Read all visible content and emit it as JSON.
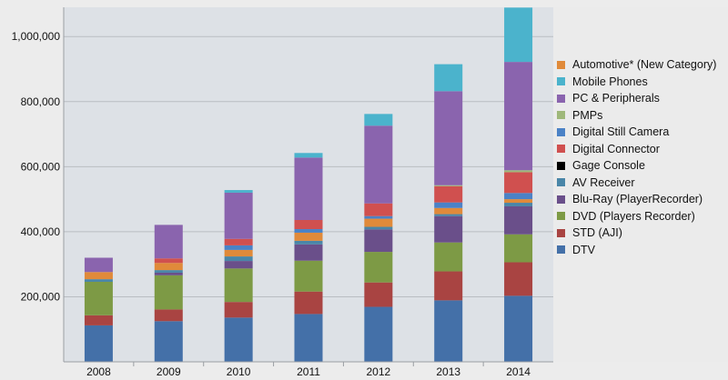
{
  "chart_data": {
    "type": "bar",
    "stacked": true,
    "title": "",
    "xlabel": "",
    "ylabel": "",
    "ylim": [
      0,
      1090000
    ],
    "yticks": [
      200000,
      400000,
      600000,
      800000,
      1000000
    ],
    "ytick_labels": [
      "200,000",
      "400,000",
      "600,000",
      "800,000",
      "1,000,000"
    ],
    "grid": "horizontal",
    "legend_position": "right",
    "categories": [
      "2008",
      "2009",
      "2010",
      "2011",
      "2012",
      "2013",
      "2014"
    ],
    "series": [
      {
        "name": "Automotive* (New Category)",
        "color": "#e08a3a",
        "values": [
          22000,
          22000,
          20000,
          25000,
          25000,
          19000,
          11000
        ]
      },
      {
        "name": "Mobile Phones",
        "color": "#4bb3cc",
        "values": [
          0,
          0,
          8000,
          14000,
          36000,
          83000,
          167000
        ]
      },
      {
        "name": "PC & Peripherals",
        "color": "#8a64ae",
        "values": [
          44000,
          103000,
          142000,
          192000,
          239000,
          289000,
          333000
        ]
      },
      {
        "name": "PMPs",
        "color": "#9fb87a",
        "values": [
          0,
          0,
          0,
          0,
          0,
          3000,
          6000
        ]
      },
      {
        "name": "Digital Still Camera",
        "color": "#4b82c6",
        "values": [
          0,
          0,
          14000,
          11000,
          8000,
          17000,
          19000
        ]
      },
      {
        "name": "Digital Connector",
        "color": "#d0504f",
        "values": [
          0,
          14000,
          20000,
          28000,
          39000,
          50000,
          64000
        ]
      },
      {
        "name": "Gage Console",
        "color": "#000000",
        "values": [
          0,
          0,
          0,
          0,
          0,
          0,
          0
        ]
      },
      {
        "name": "AV Receiver",
        "color": "#4a86a8",
        "values": [
          8000,
          8000,
          14000,
          11000,
          8000,
          6000,
          11000
        ]
      },
      {
        "name": "Blu-Ray (PlayerRecorder)",
        "color": "#6a4f8a",
        "values": [
          0,
          8000,
          23000,
          50000,
          69000,
          81000,
          86000
        ]
      },
      {
        "name": "DVD (Players Recorder)",
        "color": "#7d9a45",
        "values": [
          103000,
          105000,
          103000,
          95000,
          94000,
          89000,
          86000
        ]
      },
      {
        "name": "STD (AJI)",
        "color": "#a94442",
        "values": [
          31000,
          36000,
          48000,
          69000,
          75000,
          89000,
          103000
        ]
      },
      {
        "name": "DTV",
        "color": "#4470a8",
        "values": [
          112000,
          125000,
          136000,
          147000,
          169000,
          189000,
          203000
        ]
      }
    ],
    "stack_order": [
      "DTV",
      "STD (AJI)",
      "DVD (Players Recorder)",
      "Blu-Ray (PlayerRecorder)",
      "AV Receiver",
      "Gage Console",
      "Automotive* (New Category)",
      "Digital Still Camera",
      "Digital Connector",
      "PMPs",
      "PC & Peripherals",
      "Mobile Phones"
    ]
  }
}
